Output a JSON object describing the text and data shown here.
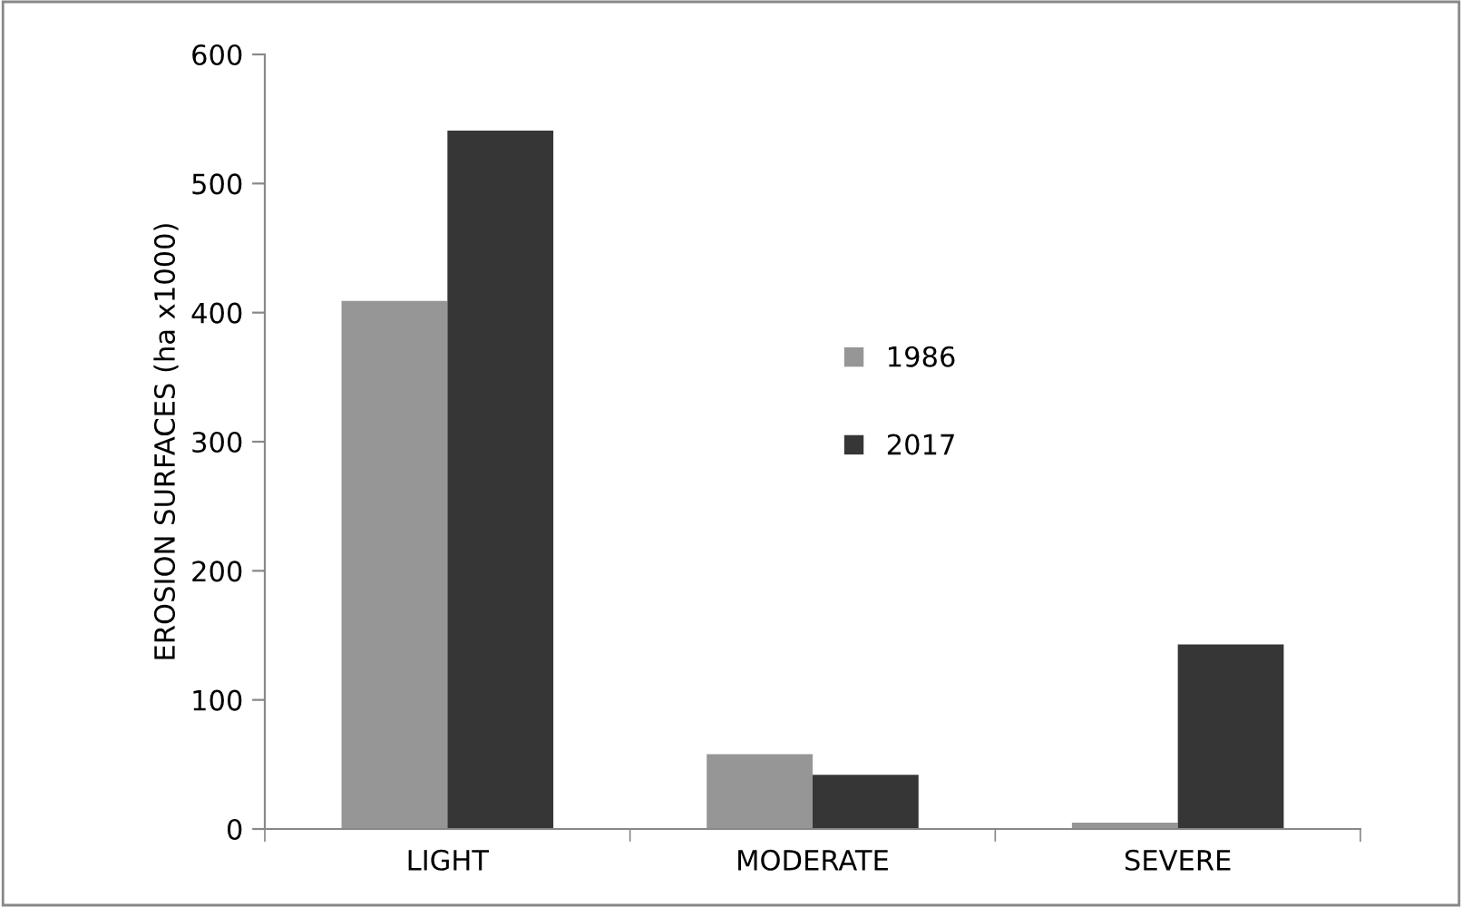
{
  "chart_data": {
    "type": "bar",
    "ylabel": "EROSION SURFACES (ha x1000)",
    "categories": [
      "LIGHT",
      "MODERATE",
      "SEVERE"
    ],
    "series": [
      {
        "name": "1986",
        "color": "#969696",
        "values": [
          409,
          58,
          5
        ]
      },
      {
        "name": "2017",
        "color": "#363636",
        "values": [
          541,
          42,
          143
        ]
      }
    ],
    "ylim": [
      0,
      600
    ],
    "yticks": [
      0,
      100,
      200,
      300,
      400,
      500,
      600
    ],
    "grid": false,
    "legend": "center"
  }
}
